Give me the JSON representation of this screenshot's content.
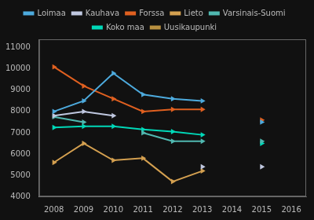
{
  "chart_data": {
    "type": "line",
    "x": [
      2008,
      2009,
      2010,
      2011,
      2012,
      2013,
      2014,
      2015,
      2016
    ],
    "series": [
      {
        "name": "Loimaa",
        "color": "#4daadd",
        "values": [
          8000,
          8500,
          9800,
          8800,
          8600,
          8500,
          null,
          7500,
          null
        ]
      },
      {
        "name": "Kauhava",
        "color": "#c0c8e0",
        "values": [
          7800,
          8000,
          7800,
          null,
          null,
          5400,
          null,
          5400,
          null
        ]
      },
      {
        "name": "Forssa",
        "color": "#e06020",
        "values": [
          10100,
          9200,
          8600,
          8000,
          8100,
          8100,
          null,
          7600,
          null
        ]
      },
      {
        "name": "Lieto",
        "color": "#d4a050",
        "values": [
          5600,
          6500,
          5700,
          5800,
          4700,
          5200,
          null,
          null,
          null
        ]
      },
      {
        "name": "Varsinais-Suomi",
        "color": "#50b8b0",
        "values": [
          7750,
          7500,
          null,
          7000,
          6600,
          6600,
          null,
          6600,
          null
        ]
      },
      {
        "name": "Koko maa",
        "color": "#00d8b8",
        "values": [
          7250,
          7300,
          7300,
          7150,
          7050,
          6900,
          null,
          6500,
          null
        ]
      },
      {
        "name": "Uusikaupunki",
        "color": "#b89040",
        "values": [
          null,
          null,
          null,
          null,
          null,
          null,
          null,
          null,
          null
        ]
      }
    ],
    "xlim": [
      2007.5,
      2016.5
    ],
    "xticks": [
      2008,
      2009,
      2010,
      2011,
      2012,
      2013,
      2014,
      2015,
      2016
    ],
    "ylim": [
      4000,
      11400
    ],
    "yticks": [
      4000,
      5000,
      6000,
      7000,
      8000,
      9000,
      10000,
      11000
    ],
    "grid": false,
    "legend": "top",
    "marker": "triangle-right"
  }
}
